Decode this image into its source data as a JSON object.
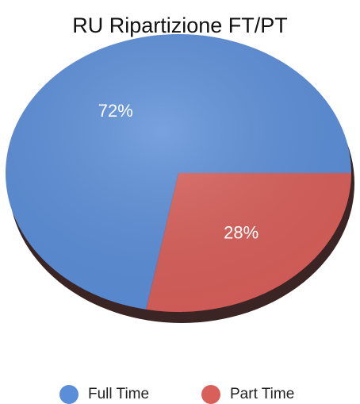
{
  "chart_data": {
    "type": "pie",
    "title": "RU Ripartizione FT/PT",
    "categories": [
      "Full Time",
      "Part Time"
    ],
    "values": [
      72,
      28
    ],
    "value_labels": [
      "72%",
      "28%"
    ],
    "colors": [
      "#5b8ed8",
      "#d95f5a"
    ],
    "legend": "bottom"
  }
}
